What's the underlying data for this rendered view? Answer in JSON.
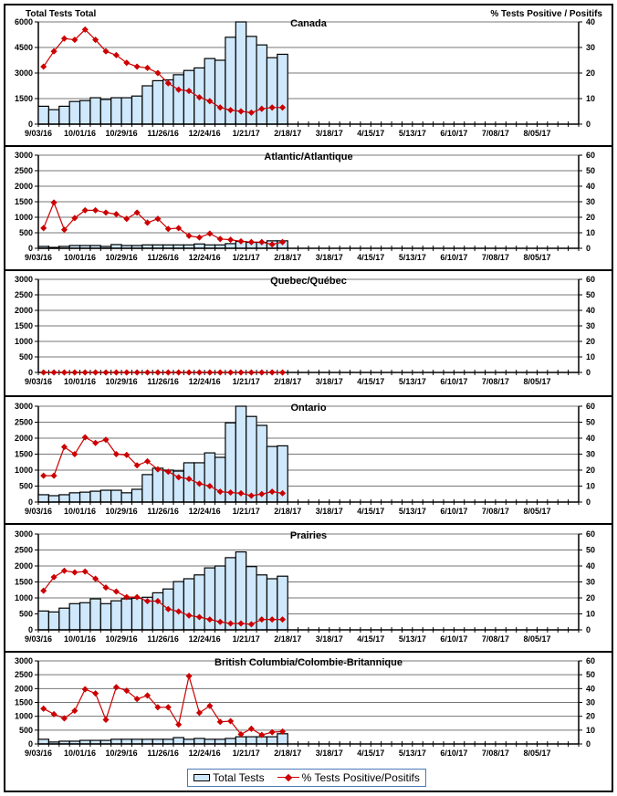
{
  "colors": {
    "bar_fill": "#cfe8fb",
    "bar_stroke": "#000000",
    "line": "#cc0000",
    "grid": "#777777"
  },
  "legend": {
    "bars_label": "Total Tests",
    "line_label": "% Tests Positive/Positifs"
  },
  "chart_data": [
    {
      "type": "bar+line",
      "title": "Canada",
      "ylabel_left": "Total Tests Total",
      "ylabel_right": "% Tests Positive / Positifs",
      "ylim_left": [
        0,
        6000
      ],
      "yticks_left": [
        0,
        1500,
        3000,
        4500,
        6000
      ],
      "ylim_right": [
        0,
        40
      ],
      "yticks_right": [
        0,
        10,
        20,
        30,
        40
      ],
      "x_tick_labels": [
        "9/03/16",
        "10/01/16",
        "10/29/16",
        "11/26/16",
        "12/24/16",
        "1/21/17",
        "2/18/17",
        "3/18/17",
        "4/15/17",
        "5/13/17",
        "6/10/17",
        "7/08/17",
        "8/05/17"
      ],
      "weeks_total": 52,
      "series": [
        {
          "name": "Total Tests",
          "axis": "left",
          "values": [
            1050,
            850,
            1050,
            1330,
            1380,
            1550,
            1450,
            1550,
            1550,
            1650,
            2250,
            2550,
            2600,
            2900,
            3150,
            3300,
            3850,
            3750,
            5100,
            6000,
            5150,
            4650,
            3900,
            4100
          ]
        },
        {
          "name": "% Tests Positive/Positifs",
          "axis": "right",
          "values": [
            22.5,
            28.5,
            33.5,
            33,
            37,
            33,
            28.5,
            27,
            24,
            22.5,
            22,
            20,
            16,
            13.5,
            13,
            10.5,
            9,
            6.5,
            5.5,
            5,
            4.5,
            6,
            6.5,
            6.5
          ]
        }
      ]
    },
    {
      "type": "bar+line",
      "title": "Atlantic/Atlantique",
      "ylim_left": [
        0,
        3000
      ],
      "yticks_left": [
        0,
        500,
        1000,
        1500,
        2000,
        2500,
        3000
      ],
      "ylim_right": [
        0,
        60
      ],
      "yticks_right": [
        0,
        10,
        20,
        30,
        40,
        50,
        60
      ],
      "x_tick_labels": [
        "9/03/16",
        "10/01/16",
        "10/29/16",
        "11/26/16",
        "12/24/16",
        "1/21/17",
        "2/18/17",
        "3/18/17",
        "4/15/17",
        "5/13/17",
        "6/10/17",
        "7/08/17",
        "8/05/17"
      ],
      "weeks_total": 52,
      "series": [
        {
          "name": "Total Tests",
          "axis": "left",
          "values": [
            60,
            30,
            60,
            90,
            90,
            90,
            60,
            120,
            90,
            90,
            110,
            110,
            110,
            110,
            110,
            140,
            110,
            110,
            150,
            220,
            190,
            190,
            240,
            240
          ]
        },
        {
          "name": "% Tests Positive/Positifs",
          "axis": "right",
          "values": [
            13,
            29.5,
            12,
            19.5,
            24.5,
            24.5,
            23,
            22,
            19,
            23,
            16.5,
            19,
            12.5,
            13,
            8,
            7,
            9.5,
            6,
            5.5,
            4.5,
            4,
            4,
            2.5,
            4
          ]
        }
      ]
    },
    {
      "type": "bar+line",
      "title": "Quebec/Québec",
      "ylim_left": [
        0,
        3000
      ],
      "yticks_left": [
        0,
        500,
        1000,
        1500,
        2000,
        2500,
        3000
      ],
      "ylim_right": [
        0,
        60
      ],
      "yticks_right": [
        0,
        10,
        20,
        30,
        40,
        50,
        60
      ],
      "x_tick_labels": [
        "9/03/16",
        "10/01/16",
        "10/29/16",
        "11/26/16",
        "12/24/16",
        "1/21/17",
        "2/18/17",
        "3/18/17",
        "4/15/17",
        "5/13/17",
        "6/10/17",
        "7/08/17",
        "8/05/17"
      ],
      "weeks_total": 52,
      "series": [
        {
          "name": "Total Tests",
          "axis": "left",
          "values": [
            0,
            0,
            0,
            0,
            0,
            0,
            0,
            0,
            0,
            0,
            0,
            0,
            0,
            0,
            0,
            0,
            0,
            0,
            0,
            0,
            0,
            0,
            0,
            0
          ]
        },
        {
          "name": "% Tests Positive/Positifs",
          "axis": "right",
          "values": [
            0,
            0,
            0,
            0,
            0,
            0,
            0,
            0,
            0,
            0,
            0,
            0,
            0,
            0,
            0,
            0,
            0,
            0,
            0,
            0,
            0,
            0,
            0,
            0
          ]
        }
      ]
    },
    {
      "type": "bar+line",
      "title": "Ontario",
      "ylim_left": [
        0,
        3000
      ],
      "yticks_left": [
        0,
        500,
        1000,
        1500,
        2000,
        2500,
        3000
      ],
      "ylim_right": [
        0,
        60
      ],
      "yticks_right": [
        0,
        10,
        20,
        30,
        40,
        50,
        60
      ],
      "x_tick_labels": [
        "9/03/16",
        "10/01/16",
        "10/29/16",
        "11/26/16",
        "12/24/16",
        "1/21/17",
        "2/18/17",
        "3/18/17",
        "4/15/17",
        "5/13/17",
        "6/10/17",
        "7/08/17",
        "8/05/17"
      ],
      "weeks_total": 52,
      "series": [
        {
          "name": "Total Tests",
          "axis": "left",
          "values": [
            230,
            200,
            230,
            290,
            310,
            340,
            370,
            370,
            290,
            400,
            860,
            1060,
            1000,
            970,
            1230,
            1230,
            1540,
            1400,
            2480,
            3000,
            2680,
            2400,
            1740,
            1760
          ]
        },
        {
          "name": "% Tests Positive/Positifs",
          "axis": "right",
          "values": [
            16.5,
            16.5,
            34.5,
            30,
            40.5,
            37,
            39,
            30,
            29.5,
            23,
            25.5,
            20.5,
            19,
            15.5,
            14.5,
            11.5,
            10,
            6.5,
            6,
            5.5,
            4,
            5,
            6.5,
            5.5
          ]
        }
      ]
    },
    {
      "type": "bar+line",
      "title": "Prairies",
      "ylim_left": [
        0,
        3000
      ],
      "yticks_left": [
        0,
        500,
        1000,
        1500,
        2000,
        2500,
        3000
      ],
      "ylim_right": [
        0,
        60
      ],
      "yticks_right": [
        0,
        10,
        20,
        30,
        40,
        50,
        60
      ],
      "x_tick_labels": [
        "9/03/16",
        "10/01/16",
        "10/29/16",
        "11/26/16",
        "12/24/16",
        "1/21/17",
        "2/18/17",
        "3/18/17",
        "4/15/17",
        "5/13/17",
        "6/10/17",
        "7/08/17",
        "8/05/17"
      ],
      "weeks_total": 52,
      "series": [
        {
          "name": "Total Tests",
          "axis": "left",
          "values": [
            590,
            560,
            680,
            820,
            850,
            970,
            820,
            910,
            970,
            990,
            1020,
            1160,
            1280,
            1510,
            1600,
            1720,
            1940,
            2000,
            2260,
            2440,
            1980,
            1720,
            1600,
            1680
          ]
        },
        {
          "name": "% Tests Positive/Positifs",
          "axis": "right",
          "values": [
            24.5,
            33,
            37,
            36,
            36.5,
            32,
            26.5,
            24,
            20.5,
            20.5,
            18,
            18,
            13,
            11.5,
            9,
            8,
            6.5,
            5,
            4,
            4,
            3.5,
            6.5,
            6.5,
            6.5
          ]
        }
      ]
    },
    {
      "type": "bar+line",
      "title": "British Columbia/Colombie-Britannique",
      "ylim_left": [
        0,
        3000
      ],
      "yticks_left": [
        0,
        500,
        1000,
        1500,
        2000,
        2500,
        3000
      ],
      "ylim_right": [
        0,
        60
      ],
      "yticks_right": [
        0,
        10,
        20,
        30,
        40,
        50,
        60
      ],
      "x_tick_labels": [
        "9/03/16",
        "10/01/16",
        "10/29/16",
        "11/26/16",
        "12/24/16",
        "1/21/17",
        "2/18/17",
        "3/18/17",
        "4/15/17",
        "5/13/17",
        "6/10/17",
        "7/08/17",
        "8/05/17"
      ],
      "weeks_total": 52,
      "series": [
        {
          "name": "Total Tests",
          "axis": "left",
          "values": [
            170,
            70,
            100,
            100,
            130,
            130,
            130,
            170,
            170,
            170,
            170,
            170,
            170,
            230,
            170,
            200,
            170,
            170,
            200,
            260,
            260,
            260,
            260,
            370
          ]
        },
        {
          "name": "% Tests Positive/Positifs",
          "axis": "right",
          "values": [
            25.5,
            21.5,
            18.5,
            24,
            39.5,
            36.5,
            17.5,
            41,
            38.5,
            32.5,
            35,
            26.5,
            26.5,
            14,
            49,
            22.5,
            27.5,
            16,
            16.5,
            7,
            11,
            6.5,
            8.5,
            9
          ]
        }
      ]
    }
  ]
}
